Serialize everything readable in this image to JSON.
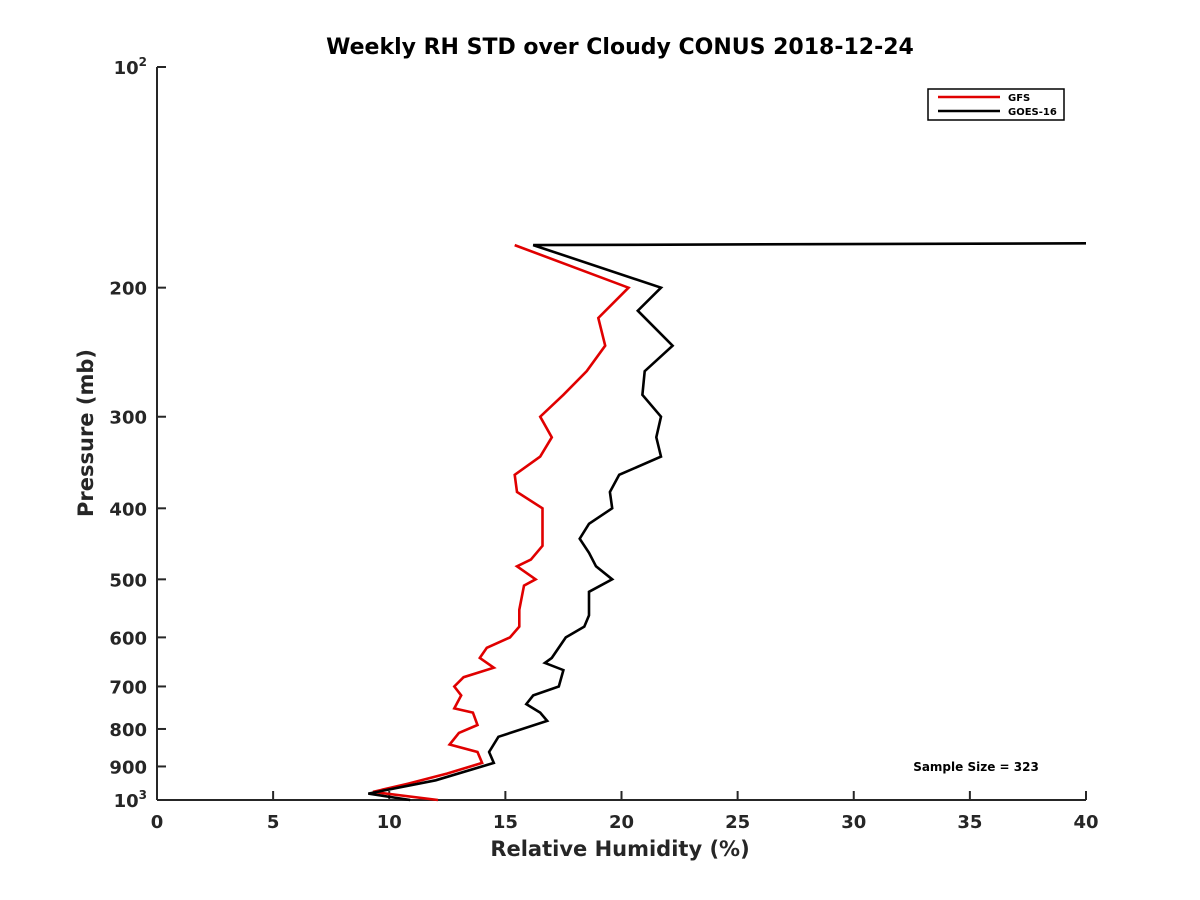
{
  "chart_data": {
    "type": "line",
    "title": "Weekly RH STD over Cloudy CONUS 2018-12-24",
    "xlabel": "Relative Humidity (%)",
    "ylabel": "Pressure (mb)",
    "xlim": [
      0,
      40
    ],
    "ylim": [
      100,
      1000
    ],
    "yscale": "log",
    "y_reversed": true,
    "x_ticks": [
      "0",
      "5",
      "10",
      "15",
      "20",
      "25",
      "30",
      "35",
      "40"
    ],
    "y_ticks": [
      {
        "value": 100,
        "base": "10",
        "exp": "2"
      },
      {
        "value": 200,
        "label": "200"
      },
      {
        "value": 300,
        "label": "300"
      },
      {
        "value": 400,
        "label": "400"
      },
      {
        "value": 500,
        "label": "500"
      },
      {
        "value": 600,
        "label": "600"
      },
      {
        "value": 700,
        "label": "700"
      },
      {
        "value": 800,
        "label": "800"
      },
      {
        "value": 900,
        "label": "900"
      },
      {
        "value": 1000,
        "base": "10",
        "exp": "3"
      }
    ],
    "legend_position": "top-right",
    "grid": false,
    "series": [
      {
        "name": "GFS",
        "color": "#e00000",
        "points": [
          {
            "x": 15.4,
            "y": 175
          },
          {
            "x": 20.3,
            "y": 200
          },
          {
            "x": 19.0,
            "y": 220
          },
          {
            "x": 19.3,
            "y": 240
          },
          {
            "x": 18.5,
            "y": 260
          },
          {
            "x": 17.5,
            "y": 280
          },
          {
            "x": 16.5,
            "y": 300
          },
          {
            "x": 17.0,
            "y": 320
          },
          {
            "x": 16.5,
            "y": 340
          },
          {
            "x": 15.4,
            "y": 360
          },
          {
            "x": 15.5,
            "y": 380
          },
          {
            "x": 16.6,
            "y": 400
          },
          {
            "x": 16.6,
            "y": 450
          },
          {
            "x": 16.1,
            "y": 470
          },
          {
            "x": 15.5,
            "y": 480
          },
          {
            "x": 16.3,
            "y": 500
          },
          {
            "x": 15.8,
            "y": 510
          },
          {
            "x": 15.6,
            "y": 550
          },
          {
            "x": 15.6,
            "y": 580
          },
          {
            "x": 15.2,
            "y": 600
          },
          {
            "x": 14.2,
            "y": 620
          },
          {
            "x": 13.9,
            "y": 640
          },
          {
            "x": 14.5,
            "y": 660
          },
          {
            "x": 13.2,
            "y": 680
          },
          {
            "x": 12.8,
            "y": 700
          },
          {
            "x": 13.1,
            "y": 720
          },
          {
            "x": 12.8,
            "y": 750
          },
          {
            "x": 13.6,
            "y": 760
          },
          {
            "x": 13.8,
            "y": 790
          },
          {
            "x": 13.0,
            "y": 810
          },
          {
            "x": 12.6,
            "y": 840
          },
          {
            "x": 13.8,
            "y": 860
          },
          {
            "x": 14.0,
            "y": 890
          },
          {
            "x": 12.5,
            "y": 920
          },
          {
            "x": 10.8,
            "y": 950
          },
          {
            "x": 9.3,
            "y": 975
          },
          {
            "x": 12.1,
            "y": 1000
          }
        ]
      },
      {
        "name": "GOES-16",
        "color": "#000000",
        "points": [
          {
            "x": 40.0,
            "y": 174
          },
          {
            "x": 16.2,
            "y": 175
          },
          {
            "x": 21.7,
            "y": 200
          },
          {
            "x": 20.7,
            "y": 215
          },
          {
            "x": 22.2,
            "y": 240
          },
          {
            "x": 21.0,
            "y": 260
          },
          {
            "x": 20.9,
            "y": 280
          },
          {
            "x": 21.7,
            "y": 300
          },
          {
            "x": 21.5,
            "y": 320
          },
          {
            "x": 21.7,
            "y": 340
          },
          {
            "x": 19.9,
            "y": 360
          },
          {
            "x": 19.5,
            "y": 380
          },
          {
            "x": 19.6,
            "y": 400
          },
          {
            "x": 18.6,
            "y": 420
          },
          {
            "x": 18.2,
            "y": 440
          },
          {
            "x": 18.6,
            "y": 460
          },
          {
            "x": 18.9,
            "y": 480
          },
          {
            "x": 19.6,
            "y": 500
          },
          {
            "x": 18.6,
            "y": 520
          },
          {
            "x": 18.6,
            "y": 560
          },
          {
            "x": 18.4,
            "y": 580
          },
          {
            "x": 17.6,
            "y": 600
          },
          {
            "x": 17.0,
            "y": 640
          },
          {
            "x": 16.7,
            "y": 650
          },
          {
            "x": 17.5,
            "y": 665
          },
          {
            "x": 17.3,
            "y": 700
          },
          {
            "x": 16.2,
            "y": 720
          },
          {
            "x": 15.9,
            "y": 740
          },
          {
            "x": 16.5,
            "y": 760
          },
          {
            "x": 16.8,
            "y": 780
          },
          {
            "x": 14.7,
            "y": 820
          },
          {
            "x": 14.3,
            "y": 860
          },
          {
            "x": 14.5,
            "y": 890
          },
          {
            "x": 12.0,
            "y": 940
          },
          {
            "x": 9.1,
            "y": 980
          },
          {
            "x": 10.9,
            "y": 1000
          }
        ]
      }
    ],
    "annotation": "Sample Size = 323"
  }
}
